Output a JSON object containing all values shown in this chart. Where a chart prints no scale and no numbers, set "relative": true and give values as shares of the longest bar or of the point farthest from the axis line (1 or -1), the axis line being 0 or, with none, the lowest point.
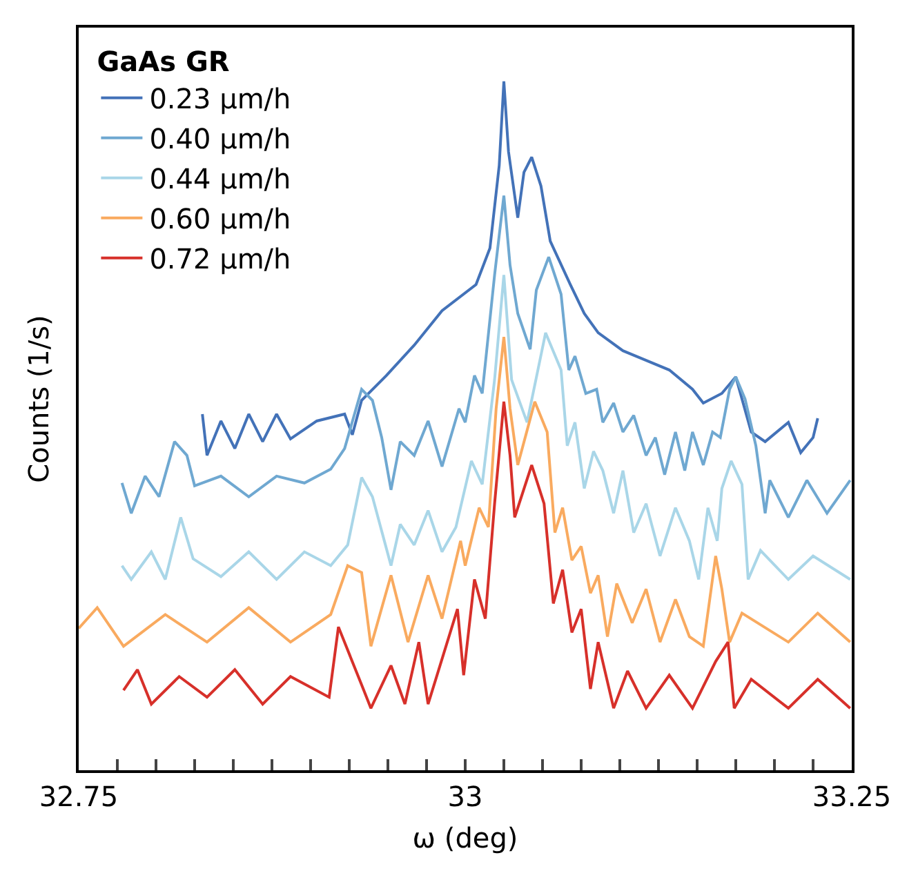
{
  "chart_data": {
    "type": "line",
    "xlabel": "ω (deg)",
    "ylabel": "Counts (1/s)",
    "legend_title": "GaAs GR",
    "legend": "top left",
    "relative": true,
    "grid": false,
    "xlim": [
      32.75,
      33.25
    ],
    "xticks": [
      32.75,
      {
        "value": 32.775,
        "label": null
      },
      {
        "value": 32.8,
        "label": null
      },
      {
        "value": 32.825,
        "label": null
      },
      {
        "value": 32.85,
        "label": null
      },
      {
        "value": 32.875,
        "label": null
      },
      {
        "value": 32.9,
        "label": null
      },
      {
        "value": 32.925,
        "label": null
      },
      {
        "value": 32.95,
        "label": null
      },
      {
        "value": 32.975,
        "label": null
      },
      33,
      {
        "value": 33.025,
        "label": null
      },
      {
        "value": 33.05,
        "label": null
      },
      {
        "value": 33.075,
        "label": null
      },
      {
        "value": 33.1,
        "label": null
      },
      {
        "value": 33.125,
        "label": null
      },
      {
        "value": 33.15,
        "label": null
      },
      {
        "value": 33.175,
        "label": null
      },
      {
        "value": 33.2,
        "label": null
      },
      {
        "value": 33.225,
        "label": null
      },
      33.25
    ],
    "series": [
      {
        "name": "0.23 μm/h",
        "color": "#4372b8",
        "x": [
          32.83,
          32.833,
          32.842,
          32.851,
          32.86,
          32.869,
          32.878,
          32.887,
          32.904,
          32.922,
          32.927,
          32.933,
          32.949,
          32.967,
          32.985,
          33.007,
          33.016,
          33.022,
          33.025,
          33.028,
          33.034,
          33.038,
          33.043,
          33.049,
          33.055,
          33.068,
          33.077,
          33.086,
          33.102,
          33.117,
          33.132,
          33.147,
          33.154,
          33.166,
          33.175,
          33.185,
          33.194,
          33.209,
          33.217,
          33.225,
          33.228
        ],
        "values": [
          0.517,
          0.457,
          0.507,
          0.467,
          0.517,
          0.477,
          0.517,
          0.481,
          0.507,
          0.517,
          0.487,
          0.537,
          0.573,
          0.617,
          0.667,
          0.705,
          0.758,
          0.878,
          1,
          0.898,
          0.802,
          0.868,
          0.89,
          0.848,
          0.768,
          0.705,
          0.663,
          0.635,
          0.609,
          0.595,
          0.581,
          0.553,
          0.533,
          0.547,
          0.571,
          0.491,
          0.477,
          0.505,
          0.461,
          0.483,
          0.511
        ]
      },
      {
        "name": "0.40 μm/h",
        "color": "#6fa8d1",
        "x": [
          32.778,
          32.784,
          32.793,
          32.802,
          32.812,
          32.82,
          32.825,
          32.842,
          32.86,
          32.878,
          32.896,
          32.913,
          32.922,
          32.933,
          32.94,
          32.946,
          32.952,
          32.958,
          32.967,
          32.976,
          32.985,
          32.996,
          33.0,
          33.006,
          33.011,
          33.019,
          33.025,
          33.029,
          33.034,
          33.042,
          33.046,
          33.054,
          33.062,
          33.067,
          33.071,
          33.078,
          33.085,
          33.089,
          33.096,
          33.102,
          33.109,
          33.117,
          33.123,
          33.129,
          33.136,
          33.142,
          33.147,
          33.154,
          33.16,
          33.165,
          33.171,
          33.175,
          33.181,
          33.188,
          33.194,
          33.197,
          33.209,
          33.221,
          33.234,
          33.249
        ],
        "values": [
          0.417,
          0.373,
          0.427,
          0.397,
          0.477,
          0.457,
          0.413,
          0.427,
          0.397,
          0.427,
          0.417,
          0.437,
          0.467,
          0.553,
          0.537,
          0.483,
          0.407,
          0.477,
          0.457,
          0.507,
          0.441,
          0.525,
          0.505,
          0.573,
          0.547,
          0.719,
          0.834,
          0.733,
          0.663,
          0.611,
          0.697,
          0.745,
          0.691,
          0.581,
          0.601,
          0.547,
          0.553,
          0.505,
          0.533,
          0.491,
          0.515,
          0.457,
          0.483,
          0.429,
          0.491,
          0.435,
          0.491,
          0.443,
          0.491,
          0.483,
          0.553,
          0.571,
          0.539,
          0.471,
          0.373,
          0.421,
          0.367,
          0.421,
          0.373,
          0.421
        ]
      },
      {
        "name": "0.44 μm/h",
        "color": "#a9d6e8",
        "x": [
          32.778,
          32.784,
          32.797,
          32.806,
          32.816,
          32.824,
          32.842,
          32.86,
          32.878,
          32.896,
          32.913,
          32.924,
          32.933,
          32.94,
          32.946,
          32.952,
          32.958,
          32.967,
          32.976,
          32.985,
          32.994,
          33.004,
          33.011,
          33.019,
          33.025,
          33.03,
          33.04,
          33.052,
          33.062,
          33.066,
          33.071,
          33.077,
          33.083,
          33.089,
          33.096,
          33.102,
          33.109,
          33.117,
          33.126,
          33.136,
          33.145,
          33.151,
          33.157,
          33.163,
          33.166,
          33.172,
          33.179,
          33.183,
          33.191,
          33.209,
          33.225,
          33.249
        ],
        "values": [
          0.297,
          0.277,
          0.317,
          0.277,
          0.367,
          0.307,
          0.281,
          0.317,
          0.277,
          0.317,
          0.297,
          0.327,
          0.425,
          0.397,
          0.347,
          0.297,
          0.357,
          0.327,
          0.377,
          0.317,
          0.353,
          0.449,
          0.415,
          0.567,
          0.719,
          0.567,
          0.505,
          0.635,
          0.581,
          0.471,
          0.505,
          0.409,
          0.463,
          0.435,
          0.373,
          0.435,
          0.345,
          0.387,
          0.311,
          0.381,
          0.333,
          0.277,
          0.381,
          0.333,
          0.409,
          0.449,
          0.415,
          0.277,
          0.319,
          0.277,
          0.311,
          0.277
        ]
      },
      {
        "name": "0.60 μm/h",
        "color": "#f9aa5f",
        "x": [
          32.75,
          32.762,
          32.779,
          32.806,
          32.833,
          32.86,
          32.887,
          32.913,
          32.924,
          32.933,
          32.939,
          32.952,
          32.963,
          32.976,
          32.985,
          32.997,
          33.0,
          33.009,
          33.015,
          33.02,
          33.025,
          33.029,
          33.034,
          33.045,
          33.053,
          33.058,
          33.063,
          33.069,
          33.075,
          33.081,
          33.086,
          33.092,
          33.098,
          33.108,
          33.117,
          33.126,
          33.136,
          33.145,
          33.154,
          33.162,
          33.166,
          33.171,
          33.179,
          33.209,
          33.228,
          33.249
        ],
        "values": [
          0.206,
          0.236,
          0.18,
          0.226,
          0.186,
          0.236,
          0.186,
          0.226,
          0.297,
          0.287,
          0.18,
          0.283,
          0.186,
          0.283,
          0.22,
          0.333,
          0.297,
          0.381,
          0.353,
          0.525,
          0.629,
          0.525,
          0.443,
          0.535,
          0.491,
          0.345,
          0.381,
          0.305,
          0.325,
          0.257,
          0.283,
          0.194,
          0.271,
          0.214,
          0.263,
          0.186,
          0.248,
          0.194,
          0.18,
          0.311,
          0.263,
          0.186,
          0.228,
          0.186,
          0.228,
          0.186
        ]
      },
      {
        "name": "0.72 μm/h",
        "color": "#d7302a",
        "x": [
          32.779,
          32.788,
          32.797,
          32.815,
          32.833,
          32.851,
          32.869,
          32.887,
          32.912,
          32.918,
          32.933,
          32.939,
          32.952,
          32.961,
          32.97,
          32.976,
          32.995,
          32.999,
          33.006,
          33.013,
          33.019,
          33.025,
          33.029,
          33.032,
          33.043,
          33.051,
          33.057,
          33.063,
          33.069,
          33.075,
          33.081,
          33.086,
          33.096,
          33.105,
          33.117,
          33.132,
          33.147,
          33.162,
          33.17,
          33.174,
          33.185,
          33.209,
          33.228,
          33.249
        ],
        "values": [
          0.116,
          0.146,
          0.096,
          0.136,
          0.106,
          0.146,
          0.096,
          0.136,
          0.106,
          0.208,
          0.124,
          0.09,
          0.152,
          0.096,
          0.186,
          0.096,
          0.234,
          0.138,
          0.277,
          0.22,
          0.387,
          0.535,
          0.457,
          0.367,
          0.443,
          0.387,
          0.242,
          0.291,
          0.2,
          0.234,
          0.118,
          0.186,
          0.09,
          0.144,
          0.09,
          0.138,
          0.09,
          0.158,
          0.186,
          0.09,
          0.132,
          0.09,
          0.132,
          0.09
        ]
      }
    ]
  }
}
